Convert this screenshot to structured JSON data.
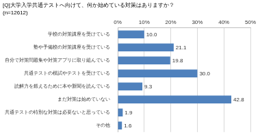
{
  "chart_data": {
    "type": "bar",
    "orientation": "horizontal",
    "title": "[Q]大学入学共通テストへ向けて、何か始めている対策はありますか？",
    "subtitle": "(n=12612)",
    "categories": [
      "学校の対策講座を受けている",
      "塾や予備校の対策講座を受けている",
      "自分で対策問題集や対策アプリに取り組んでいる",
      "共通テストの模試やテストを受けている",
      "読解力を鍛えるために本や新聞を読んでいる",
      "まだ対策は始めていない",
      "共通テストの特別な対策は必要ないと思っている",
      "その他"
    ],
    "values": [
      10.0,
      21.1,
      19.8,
      30.0,
      9.3,
      42.8,
      1.9,
      1.6
    ],
    "value_labels": [
      "10.0",
      "21.1",
      "19.8",
      "30.0",
      "9.3",
      "42.8",
      "1.9",
      "1.6"
    ],
    "data_labels": true,
    "color": "#4f81bd",
    "xlim": [
      0,
      50
    ],
    "xticks": [
      {
        "value": 0,
        "label": "0%"
      },
      {
        "value": 10,
        "label": "10%"
      },
      {
        "value": 20,
        "label": "20%"
      },
      {
        "value": 30,
        "label": "30%"
      },
      {
        "value": 40,
        "label": "40%"
      },
      {
        "value": 50,
        "label": "50%"
      }
    ],
    "grid": true
  }
}
